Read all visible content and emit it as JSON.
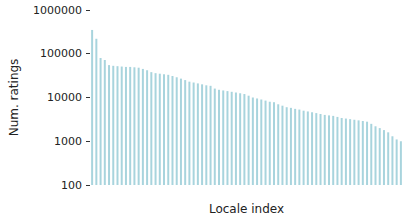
{
  "chart_data": {
    "type": "bar",
    "x_label": "Locale index",
    "y_label": "Num. ratings",
    "categories": [
      null,
      null,
      null,
      null,
      null,
      null,
      null,
      null,
      null,
      null,
      null,
      null,
      null,
      null,
      null,
      null,
      null,
      null,
      null,
      null,
      null,
      null,
      null,
      null,
      null,
      null,
      null,
      null,
      null,
      null,
      null,
      null,
      null,
      null,
      null,
      null,
      null,
      null,
      null,
      null,
      null,
      null,
      null,
      null,
      null,
      null,
      null,
      null,
      null,
      null,
      null,
      null,
      null,
      null,
      null,
      null,
      null,
      null,
      null,
      null,
      null,
      null,
      null,
      null,
      null,
      null,
      null,
      null,
      null,
      null,
      null,
      null,
      null,
      null
    ],
    "values": [
      350000,
      220000,
      80000,
      72000,
      55000,
      53000,
      52000,
      51000,
      50000,
      50000,
      49000,
      48000,
      45000,
      42000,
      38000,
      36000,
      35000,
      34000,
      33000,
      31000,
      29000,
      27000,
      25000,
      23000,
      22000,
      21000,
      20000,
      19000,
      18500,
      16000,
      15000,
      14500,
      14000,
      13500,
      13000,
      12500,
      12000,
      11000,
      10000,
      9500,
      9000,
      8500,
      8000,
      7800,
      7000,
      6500,
      6000,
      5800,
      5500,
      5300,
      5000,
      4800,
      4600,
      4400,
      4200,
      4000,
      3900,
      3800,
      3600,
      3400,
      3300,
      3200,
      3100,
      3000,
      2900,
      2800,
      2500,
      2200,
      2000,
      1800,
      1600,
      1300,
      1100,
      1000
    ],
    "color": "#a8d4dd",
    "log": "y",
    "ylim": [
      100,
      1000000
    ],
    "yticks": [
      100,
      1000,
      10000,
      100000,
      1000000
    ],
    "grid": false,
    "tick_labels": "y"
  }
}
